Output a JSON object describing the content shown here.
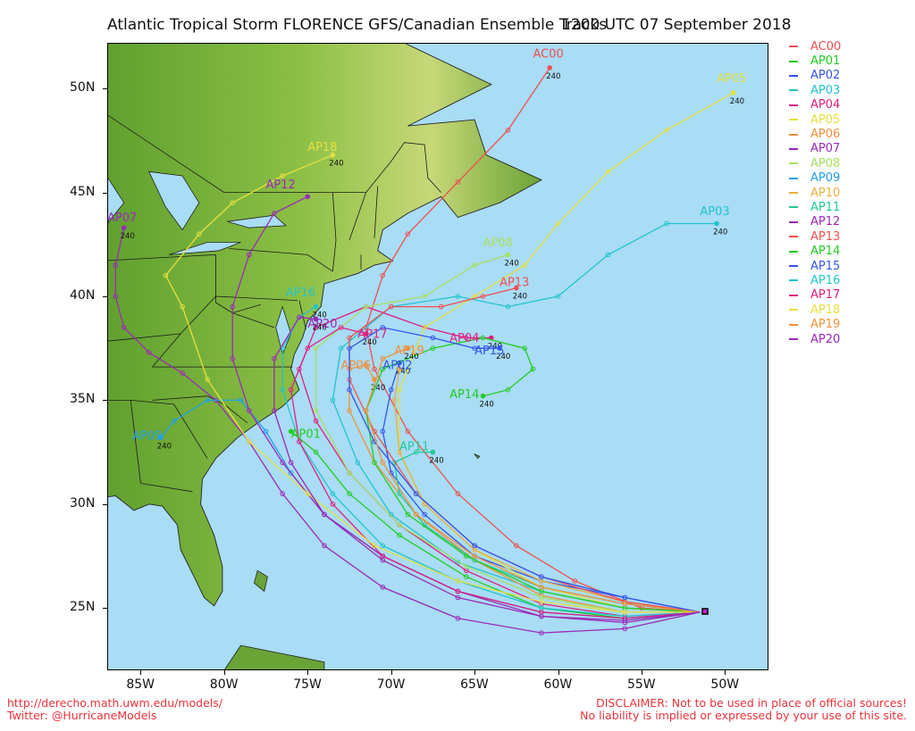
{
  "title": {
    "left": "Atlantic Tropical Storm FLORENCE GFS/Canadian Ensemble Tracks",
    "right": "1200 UTC 07 September 2018"
  },
  "colors": {
    "ocean": "#a9dcf5",
    "land_low": "#5f9f2e",
    "land_high": "#f0eda0",
    "border": "#1a1a1a"
  },
  "axes": {
    "x_ticks": [
      "85W",
      "80W",
      "75W",
      "70W",
      "65W",
      "60W",
      "55W",
      "50W"
    ],
    "x_values": [
      -85,
      -80,
      -75,
      -70,
      -65,
      -60,
      -55,
      -50
    ],
    "y_ticks": [
      "50N",
      "45N",
      "40N",
      "35N",
      "30N",
      "25N"
    ],
    "y_values": [
      50,
      45,
      40,
      35,
      30,
      25
    ],
    "lon_range": [
      -87.0,
      -47.4
    ],
    "lat_range": [
      22.0,
      52.2
    ]
  },
  "legend": [
    {
      "name": "AC00",
      "color": "#f05050"
    },
    {
      "name": "AP01",
      "color": "#22cc22"
    },
    {
      "name": "AP02",
      "color": "#3355ee"
    },
    {
      "name": "AP03",
      "color": "#22c4cc"
    },
    {
      "name": "AP04",
      "color": "#e0207f"
    },
    {
      "name": "AP05",
      "color": "#e5e040"
    },
    {
      "name": "AP06",
      "color": "#f0903a"
    },
    {
      "name": "AP07",
      "color": "#9a2ab8"
    },
    {
      "name": "AP08",
      "color": "#a8e060"
    },
    {
      "name": "AP09",
      "color": "#22a0e8"
    },
    {
      "name": "AP10",
      "color": "#e8b040"
    },
    {
      "name": "AP11",
      "color": "#22c896"
    },
    {
      "name": "AP12",
      "color": "#9a2ab8"
    },
    {
      "name": "AP13",
      "color": "#f05050"
    },
    {
      "name": "AP14",
      "color": "#22cc22"
    },
    {
      "name": "AP15",
      "color": "#3355ee"
    },
    {
      "name": "AP16",
      "color": "#22c4cc"
    },
    {
      "name": "AP17",
      "color": "#e0207f"
    },
    {
      "name": "AP18",
      "color": "#e5e040"
    },
    {
      "name": "AP19",
      "color": "#f0903a"
    },
    {
      "name": "AP20",
      "color": "#9a2ab8"
    }
  ],
  "tracks": [
    {
      "name": "AC00",
      "color": "#f05050",
      "end_label": "240",
      "points": [
        [
          -51.5,
          24.8
        ],
        [
          -55,
          25.0
        ],
        [
          -59,
          26.3
        ],
        [
          -62.5,
          28.0
        ],
        [
          -66,
          30.5
        ],
        [
          -69,
          33.5
        ],
        [
          -71,
          36.5
        ],
        [
          -71.5,
          38.5
        ],
        [
          -70.5,
          41.0
        ],
        [
          -69,
          43.0
        ],
        [
          -66,
          45.5
        ],
        [
          -63,
          48.0
        ],
        [
          -60.5,
          51.0
        ]
      ]
    },
    {
      "name": "AP01",
      "color": "#22cc22",
      "end_label": "",
      "points": [
        [
          -51.5,
          24.8
        ],
        [
          -56,
          24.5
        ],
        [
          -61,
          25.0
        ],
        [
          -65.5,
          26.5
        ],
        [
          -69.5,
          28.5
        ],
        [
          -72.5,
          30.5
        ],
        [
          -74.5,
          32.5
        ],
        [
          -76,
          33.5
        ]
      ]
    },
    {
      "name": "AP02",
      "color": "#3355ee",
      "end_label": "240",
      "points": [
        [
          -51.5,
          24.8
        ],
        [
          -56,
          25.5
        ],
        [
          -61,
          26.3
        ],
        [
          -65,
          27.5
        ],
        [
          -68,
          29.5
        ],
        [
          -70,
          31.5
        ],
        [
          -70.5,
          33.5
        ],
        [
          -70.0,
          35.5
        ],
        [
          -69.5,
          36.8
        ]
      ]
    },
    {
      "name": "AP03",
      "color": "#22c4cc",
      "end_label": "240",
      "points": [
        [
          -51.5,
          24.8
        ],
        [
          -56,
          25.0
        ],
        [
          -61,
          25.8
        ],
        [
          -66,
          27.2
        ],
        [
          -70,
          29.5
        ],
        [
          -72,
          32
        ],
        [
          -73.5,
          35
        ],
        [
          -73,
          37.5
        ],
        [
          -70,
          39.5
        ],
        [
          -66,
          40.0
        ],
        [
          -63,
          39.5
        ],
        [
          -60,
          40.0
        ],
        [
          -57,
          42.0
        ],
        [
          -53.5,
          43.5
        ],
        [
          -50.5,
          43.5
        ]
      ]
    },
    {
      "name": "AP04",
      "color": "#e0207f",
      "end_label": "240",
      "points": [
        [
          -51.5,
          24.8
        ],
        [
          -56,
          24.6
        ],
        [
          -61,
          25.2
        ],
        [
          -65.5,
          26.8
        ],
        [
          -69.5,
          29.0
        ],
        [
          -72.5,
          31.5
        ],
        [
          -74.5,
          34.0
        ],
        [
          -75.5,
          36.5
        ],
        [
          -74.5,
          38.5
        ],
        [
          -71.5,
          39.5
        ],
        [
          -68,
          38.5
        ],
        [
          -65.5,
          38.0
        ],
        [
          -64,
          38.0
        ]
      ]
    },
    {
      "name": "AP05",
      "color": "#e5e040",
      "end_label": "240",
      "points": [
        [
          -51.5,
          24.8
        ],
        [
          -56,
          25.0
        ],
        [
          -61,
          26.0
        ],
        [
          -65,
          27.8
        ],
        [
          -68,
          30.0
        ],
        [
          -69.5,
          32.5
        ],
        [
          -69.5,
          35.5
        ],
        [
          -68,
          38.5
        ],
        [
          -65,
          40.0
        ],
        [
          -62,
          41.5
        ],
        [
          -60,
          43.5
        ],
        [
          -57,
          46.0
        ],
        [
          -53.5,
          48.0
        ],
        [
          -49.5,
          49.8
        ]
      ]
    },
    {
      "name": "AP06",
      "color": "#f0903a",
      "end_label": "240",
      "points": [
        [
          -51.5,
          24.8
        ],
        [
          -56,
          24.8
        ],
        [
          -61,
          25.6
        ],
        [
          -65,
          27.3
        ],
        [
          -68.5,
          29.5
        ],
        [
          -71,
          32.0
        ],
        [
          -72.5,
          34.5
        ],
        [
          -72.5,
          36.5
        ],
        [
          -71.5,
          36.7
        ],
        [
          -71.0,
          36.0
        ]
      ]
    },
    {
      "name": "AP07",
      "color": "#9a2ab8",
      "end_label": "240",
      "points": [
        [
          -51.5,
          24.8
        ],
        [
          -56,
          24.0
        ],
        [
          -61,
          23.8
        ],
        [
          -66,
          24.5
        ],
        [
          -70.5,
          26.0
        ],
        [
          -74,
          28.0
        ],
        [
          -76.5,
          30.5
        ],
        [
          -78.5,
          33.0
        ],
        [
          -80.5,
          35.0
        ],
        [
          -82.5,
          36.3
        ],
        [
          -84.5,
          37.3
        ],
        [
          -86,
          38.5
        ],
        [
          -86.5,
          40.0
        ],
        [
          -86.5,
          41.5
        ],
        [
          -86,
          43.3
        ]
      ]
    },
    {
      "name": "AP08",
      "color": "#a8e060",
      "end_label": "240",
      "points": [
        [
          -51.5,
          24.8
        ],
        [
          -56,
          24.8
        ],
        [
          -61,
          25.5
        ],
        [
          -65.5,
          27.0
        ],
        [
          -69.5,
          29.0
        ],
        [
          -72.5,
          31.5
        ],
        [
          -74.5,
          34.5
        ],
        [
          -74.5,
          37.5
        ],
        [
          -71.5,
          39.5
        ],
        [
          -68,
          40.0
        ],
        [
          -65,
          41.5
        ],
        [
          -63,
          42.0
        ]
      ]
    },
    {
      "name": "AP09",
      "color": "#22a0e8",
      "end_label": "240",
      "points": [
        [
          -51.5,
          24.8
        ],
        [
          -56,
          24.5
        ],
        [
          -61,
          24.8
        ],
        [
          -66,
          25.8
        ],
        [
          -70.5,
          27.5
        ],
        [
          -74,
          29.5
        ],
        [
          -76,
          31.5
        ],
        [
          -77.5,
          33.5
        ],
        [
          -79,
          35.0
        ],
        [
          -81,
          35.0
        ],
        [
          -83,
          34.0
        ],
        [
          -83.8,
          33.2
        ]
      ]
    },
    {
      "name": "AP10",
      "color": "#e8b040",
      "end_label": "",
      "points": [
        [
          -51.5,
          24.8
        ],
        [
          -56,
          25.3
        ],
        [
          -61,
          26.3
        ],
        [
          -65,
          27.8
        ],
        [
          -68,
          30.0
        ],
        [
          -69.5,
          32.5
        ],
        [
          -69.8,
          35.0
        ],
        [
          -69.5,
          36.5
        ]
      ]
    },
    {
      "name": "AP11",
      "color": "#22c896",
      "end_label": "240",
      "points": [
        [
          -51.5,
          24.8
        ],
        [
          -56,
          25.2
        ],
        [
          -61,
          26.0
        ],
        [
          -65,
          27.3
        ],
        [
          -68,
          29.0
        ],
        [
          -69.5,
          30.5
        ],
        [
          -69.8,
          32.0
        ],
        [
          -68.5,
          32.5
        ],
        [
          -67.5,
          32.5
        ]
      ]
    },
    {
      "name": "AP12",
      "color": "#9a2ab8",
      "end_label": "",
      "points": [
        [
          -51.5,
          24.8
        ],
        [
          -56,
          24.3
        ],
        [
          -61,
          24.6
        ],
        [
          -66,
          25.8
        ],
        [
          -70.5,
          27.5
        ],
        [
          -74,
          29.5
        ],
        [
          -76.5,
          32.0
        ],
        [
          -78.5,
          34.5
        ],
        [
          -79.5,
          37.0
        ],
        [
          -79.5,
          39.5
        ],
        [
          -78.5,
          42.0
        ],
        [
          -77.0,
          44.0
        ],
        [
          -75.0,
          44.8
        ]
      ]
    },
    {
      "name": "AP13",
      "color": "#f05050",
      "end_label": "240",
      "points": [
        [
          -51.5,
          24.8
        ],
        [
          -56,
          25.3
        ],
        [
          -61,
          26.5
        ],
        [
          -65,
          28.0
        ],
        [
          -68.5,
          30.5
        ],
        [
          -71,
          33.5
        ],
        [
          -72.5,
          36.0
        ],
        [
          -72.5,
          38.0
        ],
        [
          -70,
          39.5
        ],
        [
          -67,
          39.5
        ],
        [
          -64.5,
          40.0
        ],
        [
          -62.5,
          40.4
        ]
      ]
    },
    {
      "name": "AP14",
      "color": "#22cc22",
      "end_label": "240",
      "points": [
        [
          -51.5,
          24.8
        ],
        [
          -56,
          25.0
        ],
        [
          -61,
          25.8
        ],
        [
          -65.5,
          27.5
        ],
        [
          -69,
          29.5
        ],
        [
          -71,
          32.0
        ],
        [
          -71.5,
          34.5
        ],
        [
          -70.5,
          36.5
        ],
        [
          -67.5,
          37.5
        ],
        [
          -64.5,
          38.0
        ],
        [
          -62,
          37.5
        ],
        [
          -61.5,
          36.5
        ],
        [
          -63,
          35.5
        ],
        [
          -64.5,
          35.2
        ]
      ]
    },
    {
      "name": "AP15",
      "color": "#3355ee",
      "end_label": "240",
      "points": [
        [
          -51.5,
          24.8
        ],
        [
          -56,
          25.5
        ],
        [
          -61,
          26.5
        ],
        [
          -65,
          28.0
        ],
        [
          -68.5,
          30.5
        ],
        [
          -71,
          33.0
        ],
        [
          -72.5,
          35.5
        ],
        [
          -72.5,
          37.5
        ],
        [
          -70.5,
          38.5
        ],
        [
          -67.5,
          38.0
        ],
        [
          -65,
          37.5
        ],
        [
          -63.5,
          37.5
        ]
      ]
    },
    {
      "name": "AP16",
      "color": "#22c4cc",
      "end_label": "240",
      "points": [
        [
          -51.5,
          24.8
        ],
        [
          -56,
          24.6
        ],
        [
          -61,
          25.0
        ],
        [
          -66,
          26.3
        ],
        [
          -70.5,
          28.0
        ],
        [
          -73.5,
          30.5
        ],
        [
          -75.5,
          33.0
        ],
        [
          -76.5,
          35.5
        ],
        [
          -76.5,
          37.5
        ],
        [
          -75.5,
          39.0
        ],
        [
          -74.5,
          39.5
        ]
      ]
    },
    {
      "name": "AP17",
      "color": "#e0207f",
      "end_label": "240",
      "points": [
        [
          -51.5,
          24.8
        ],
        [
          -56,
          24.5
        ],
        [
          -61,
          24.8
        ],
        [
          -66,
          25.8
        ],
        [
          -70.5,
          27.5
        ],
        [
          -73.5,
          30.0
        ],
        [
          -75.5,
          33.0
        ],
        [
          -76,
          35.5
        ],
        [
          -75,
          37.5
        ],
        [
          -73,
          38.5
        ],
        [
          -71.5,
          38.2
        ]
      ]
    },
    {
      "name": "AP18",
      "color": "#e5e040",
      "end_label": "240",
      "points": [
        [
          -51.5,
          24.8
        ],
        [
          -56,
          24.8
        ],
        [
          -61,
          25.3
        ],
        [
          -66,
          26.3
        ],
        [
          -71,
          28.0
        ],
        [
          -75,
          30.5
        ],
        [
          -78.5,
          33.0
        ],
        [
          -81.0,
          36.0
        ],
        [
          -82.5,
          39.5
        ],
        [
          -83.5,
          41.0
        ],
        [
          -81.5,
          43.0
        ],
        [
          -79.5,
          44.5
        ],
        [
          -76.5,
          45.8
        ],
        [
          -73.5,
          46.8
        ]
      ]
    },
    {
      "name": "AP19",
      "color": "#f0903a",
      "end_label": "240",
      "points": [
        [
          -51.5,
          24.8
        ],
        [
          -56,
          25.2
        ],
        [
          -61,
          26.0
        ],
        [
          -65,
          27.5
        ],
        [
          -68.5,
          29.5
        ],
        [
          -70.5,
          32.0
        ],
        [
          -71.5,
          34.5
        ],
        [
          -70.5,
          37.0
        ],
        [
          -69.0,
          37.5
        ]
      ]
    },
    {
      "name": "AP20",
      "color": "#9a2ab8",
      "end_label": "240",
      "points": [
        [
          -51.5,
          24.8
        ],
        [
          -56,
          24.4
        ],
        [
          -61,
          24.6
        ],
        [
          -66,
          25.5
        ],
        [
          -70.5,
          27.3
        ],
        [
          -74,
          29.5
        ],
        [
          -76,
          32.0
        ],
        [
          -77,
          34.5
        ],
        [
          -77,
          37.0
        ],
        [
          -75.5,
          39.0
        ],
        [
          -74.5,
          38.9
        ]
      ]
    }
  ],
  "track_labels": [
    {
      "text": "AC00",
      "lon": -61.5,
      "lat": 51.5,
      "color": "#f05050"
    },
    {
      "text": "AP05",
      "lon": -50.5,
      "lat": 50.3,
      "color": "#e5e040"
    },
    {
      "text": "AP03",
      "lon": -51.5,
      "lat": 43.9,
      "color": "#22c4cc"
    },
    {
      "text": "AP08",
      "lon": -64.5,
      "lat": 42.4,
      "color": "#a8e060"
    },
    {
      "text": "AP13",
      "lon": -63.5,
      "lat": 40.5,
      "color": "#f05050"
    },
    {
      "text": "AP12",
      "lon": -77.5,
      "lat": 45.2,
      "color": "#9a2ab8"
    },
    {
      "text": "AP18",
      "lon": -75.0,
      "lat": 47.0,
      "color": "#e5e040"
    },
    {
      "text": "AP07",
      "lon": -87.0,
      "lat": 43.6,
      "color": "#9a2ab8"
    },
    {
      "text": "AP16",
      "lon": -76.3,
      "lat": 40.0,
      "color": "#22c4cc"
    },
    {
      "text": "AP20",
      "lon": -75.0,
      "lat": 38.5,
      "color": "#9a2ab8"
    },
    {
      "text": "AP17",
      "lon": -72.0,
      "lat": 38.0,
      "color": "#e0207f"
    },
    {
      "text": "AP04",
      "lon": -66.5,
      "lat": 37.8,
      "color": "#e0207f"
    },
    {
      "text": "AP15",
      "lon": -65.0,
      "lat": 37.2,
      "color": "#3355ee"
    },
    {
      "text": "AP19",
      "lon": -69.8,
      "lat": 37.2,
      "color": "#f0903a"
    },
    {
      "text": "AP06",
      "lon": -73.0,
      "lat": 36.5,
      "color": "#f0903a"
    },
    {
      "text": "AP02",
      "lon": -70.5,
      "lat": 36.5,
      "color": "#3355ee"
    },
    {
      "text": "AP14",
      "lon": -66.5,
      "lat": 35.1,
      "color": "#22cc22"
    },
    {
      "text": "AP11",
      "lon": -69.5,
      "lat": 32.6,
      "color": "#22c896"
    },
    {
      "text": "AP01",
      "lon": -76.0,
      "lat": 33.2,
      "color": "#22cc22"
    },
    {
      "text": "AP09",
      "lon": -85.5,
      "lat": 33.1,
      "color": "#22a0e8"
    }
  ],
  "footer": {
    "left_line1": "http://derecho.math.uwm.edu/models/",
    "left_line2": "Twitter: @HurricaneModels",
    "right_line1": "DISCLAIMER: Not to be used in place of official sources!",
    "right_line2": "No liability is implied or expressed by your use of this site."
  }
}
